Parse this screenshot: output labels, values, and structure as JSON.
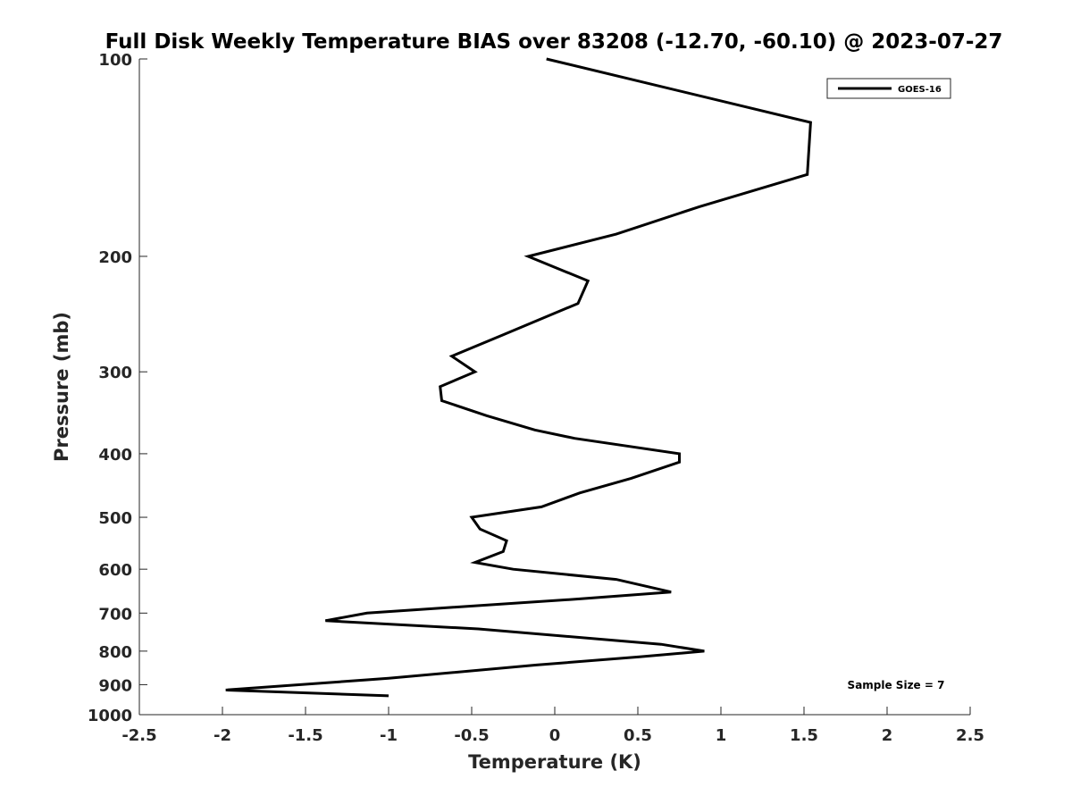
{
  "chart_data": {
    "type": "line",
    "title": "Full Disk Weekly Temperature BIAS over 83208 (-12.70, -60.10) @ 2023-07-27",
    "xlabel": "Temperature (K)",
    "ylabel": "Pressure (mb)",
    "xlim": [
      -2.5,
      2.5
    ],
    "ylim": [
      100,
      1000
    ],
    "yscale": "log",
    "y_reversed": true,
    "xticks": [
      -2.5,
      -2,
      -1.5,
      -1,
      -0.5,
      0,
      0.5,
      1,
      1.5,
      2,
      2.5
    ],
    "xtick_labels": [
      "-2.5",
      "-2",
      "-1.5",
      "-1",
      "-0.5",
      "0",
      "0.5",
      "1",
      "1.5",
      "2",
      "2.5"
    ],
    "yticks": [
      100,
      200,
      300,
      400,
      500,
      600,
      700,
      800,
      900,
      1000
    ],
    "ytick_labels": [
      "100",
      "200",
      "300",
      "400",
      "500",
      "600",
      "700",
      "800",
      "900",
      "1000"
    ],
    "grid": false,
    "legend": {
      "placement": "top-right",
      "entries": [
        "GOES-16"
      ]
    },
    "annotation": "Sample Size = 7",
    "series": [
      {
        "name": "GOES-16",
        "color": "#000000",
        "points": [
          {
            "x": -0.05,
            "p": 100
          },
          {
            "x": 1.54,
            "p": 125
          },
          {
            "x": 1.52,
            "p": 150
          },
          {
            "x": 0.87,
            "p": 168
          },
          {
            "x": 0.37,
            "p": 185
          },
          {
            "x": -0.16,
            "p": 200
          },
          {
            "x": 0.2,
            "p": 218
          },
          {
            "x": 0.14,
            "p": 236
          },
          {
            "x": -0.32,
            "p": 264
          },
          {
            "x": -0.62,
            "p": 284
          },
          {
            "x": -0.48,
            "p": 300
          },
          {
            "x": -0.69,
            "p": 316
          },
          {
            "x": -0.68,
            "p": 332
          },
          {
            "x": -0.41,
            "p": 350
          },
          {
            "x": -0.12,
            "p": 368
          },
          {
            "x": 0.12,
            "p": 379
          },
          {
            "x": 0.75,
            "p": 400
          },
          {
            "x": 0.75,
            "p": 412
          },
          {
            "x": 0.46,
            "p": 436
          },
          {
            "x": 0.15,
            "p": 459
          },
          {
            "x": -0.08,
            "p": 482
          },
          {
            "x": -0.5,
            "p": 500
          },
          {
            "x": -0.45,
            "p": 521
          },
          {
            "x": -0.29,
            "p": 543
          },
          {
            "x": -0.31,
            "p": 564
          },
          {
            "x": -0.48,
            "p": 586
          },
          {
            "x": -0.25,
            "p": 600
          },
          {
            "x": 0.37,
            "p": 622
          },
          {
            "x": 0.7,
            "p": 650
          },
          {
            "x": 0.15,
            "p": 666
          },
          {
            "x": -0.62,
            "p": 686
          },
          {
            "x": -1.13,
            "p": 700
          },
          {
            "x": -1.38,
            "p": 719
          },
          {
            "x": -0.46,
            "p": 740
          },
          {
            "x": 0.64,
            "p": 781
          },
          {
            "x": 0.9,
            "p": 800
          },
          {
            "x": 0.51,
            "p": 816
          },
          {
            "x": -0.11,
            "p": 840
          },
          {
            "x": -1.0,
            "p": 880
          },
          {
            "x": -1.98,
            "p": 917
          },
          {
            "x": -1.0,
            "p": 936
          }
        ]
      }
    ]
  }
}
